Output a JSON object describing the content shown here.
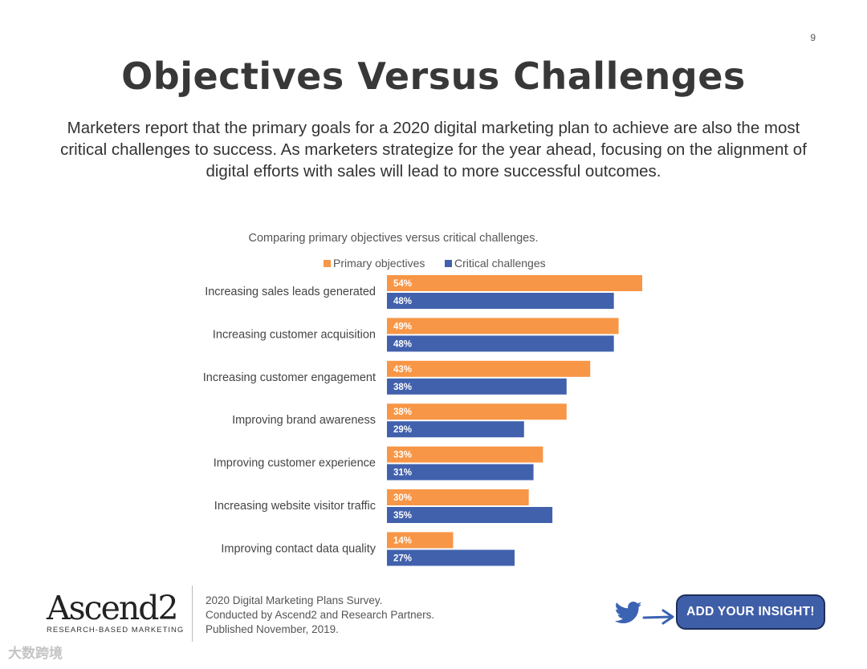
{
  "page_number": "9",
  "title": "Objectives Versus Challenges",
  "intro": "Marketers report that the primary goals for a 2020 digital marketing plan to achieve are also the most critical challenges to success. As marketers strategize for the year ahead, focusing on the alignment of digital efforts with sales will lead to more successful outcomes.",
  "chart_data": {
    "type": "bar",
    "orientation": "horizontal",
    "title": "Comparing primary objectives versus critical challenges.",
    "categories": [
      "Increasing sales leads generated",
      "Increasing customer acquisition",
      "Increasing customer engagement",
      "Improving brand awareness",
      "Improving customer experience",
      "Increasing website visitor traffic",
      "Improving contact data quality"
    ],
    "series": [
      {
        "name": "Primary objectives",
        "color": "#f79646",
        "values": [
          54,
          49,
          43,
          38,
          33,
          30,
          14
        ]
      },
      {
        "name": "Critical challenges",
        "color": "#4161ad",
        "values": [
          48,
          48,
          38,
          29,
          31,
          35,
          27
        ]
      }
    ],
    "value_suffix": "%",
    "legend_position": "top",
    "grid": false
  },
  "footer": {
    "logo_text": "Ascend2",
    "logo_tagline": "RESEARCH-BASED MARKETING",
    "source_lines": [
      "2020 Digital Marketing Plans Survey.",
      "Conducted  by Ascend2 and Research Partners.",
      "Published November, 2019."
    ],
    "insight_button": "ADD YOUR INSIGHT!"
  },
  "watermark": "大数跨境",
  "colors": {
    "title": "#383838",
    "button": "#3f5ea8"
  }
}
